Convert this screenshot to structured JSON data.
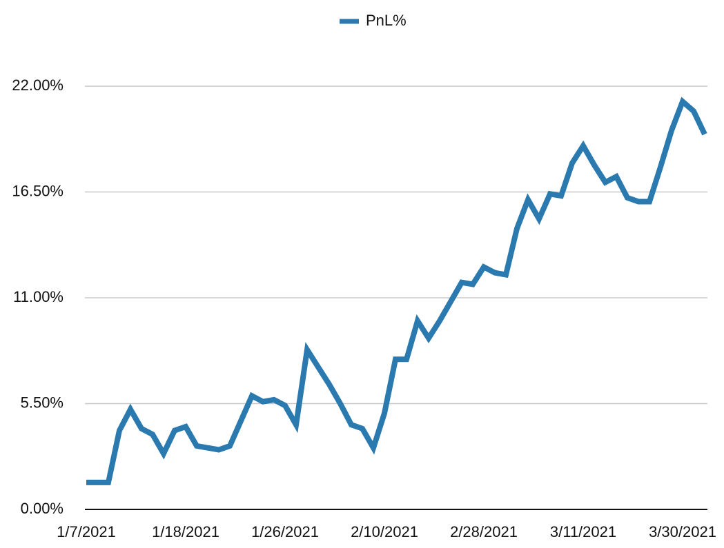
{
  "chart_data": {
    "type": "line",
    "categories": [
      "1/7/2021",
      null,
      null,
      null,
      null,
      null,
      null,
      null,
      null,
      "1/18/2021",
      null,
      null,
      null,
      null,
      null,
      null,
      null,
      null,
      "1/26/2021",
      null,
      null,
      null,
      null,
      null,
      null,
      null,
      null,
      "2/10/2021",
      null,
      null,
      null,
      null,
      null,
      null,
      null,
      null,
      "2/28/2021",
      null,
      null,
      null,
      null,
      null,
      null,
      null,
      null,
      "3/11/2021",
      null,
      null,
      null,
      null,
      null,
      null,
      null,
      null,
      "3/30/2021",
      null,
      null
    ],
    "series": [
      {
        "name": "PnL%",
        "color": "#2a7ab0",
        "values": [
          1.4,
          1.4,
          1.4,
          4.1,
          5.2,
          4.2,
          3.9,
          2.9,
          4.1,
          4.3,
          3.3,
          3.2,
          3.1,
          3.3,
          4.6,
          5.9,
          5.6,
          5.7,
          5.4,
          4.4,
          8.3,
          7.4,
          6.5,
          5.5,
          4.4,
          4.2,
          3.2,
          5.0,
          7.8,
          7.8,
          9.8,
          8.9,
          9.8,
          10.8,
          11.8,
          11.7,
          12.6,
          12.3,
          12.2,
          14.6,
          16.1,
          15.1,
          16.4,
          16.3,
          18.0,
          18.9,
          17.9,
          17.0,
          17.3,
          16.2,
          16.0,
          16.0,
          17.8,
          19.7,
          21.2,
          20.7,
          19.5
        ]
      }
    ],
    "ylim": [
      0,
      22
    ],
    "yticks": [
      {
        "value": 0,
        "label": "0.00%"
      },
      {
        "value": 5.5,
        "label": "5.50%"
      },
      {
        "value": 11,
        "label": "11.00%"
      },
      {
        "value": 16.5,
        "label": "16.50%"
      },
      {
        "value": 22,
        "label": "22.00%"
      }
    ],
    "grid": true,
    "legend": "top"
  }
}
